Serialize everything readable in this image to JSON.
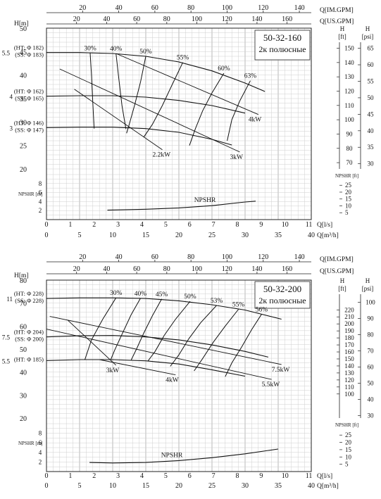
{
  "chart_data": [
    {
      "type": "line",
      "title": "50-32-160",
      "subtitle": "2к полюсные",
      "top_axes": [
        {
          "label": "Q[IM.GPM]",
          "ticks": [
            20,
            40,
            60,
            80,
            100,
            120,
            140
          ],
          "max": 146.6
        },
        {
          "label": "Q[US.GPM]",
          "ticks": [
            20,
            40,
            60,
            80,
            100,
            120,
            140,
            160
          ],
          "max": 176.1
        }
      ],
      "x_axes": [
        {
          "label": "Q[l/s]",
          "ticks": [
            0,
            1,
            2,
            3,
            4,
            5,
            6,
            7,
            8,
            9,
            10,
            11
          ],
          "max": 11.1
        },
        {
          "label": "Q[m³/h]",
          "ticks": [
            0,
            5,
            10,
            15,
            20,
            25,
            30,
            35,
            40
          ],
          "max": 40
        }
      ],
      "y_axis": {
        "label": "H[m]",
        "ticks": [
          20,
          25,
          30,
          35,
          40,
          45,
          50
        ],
        "ylim": [
          20,
          50
        ]
      },
      "right_axes": [
        {
          "label": "H [ft]",
          "ticks": [
            70,
            80,
            90,
            100,
            110,
            120,
            130,
            140,
            150
          ]
        },
        {
          "label": "H [psi]",
          "ticks": [
            30,
            35,
            40,
            45,
            50,
            55,
            60,
            65
          ]
        }
      ],
      "npsh_axis": {
        "label": "NPSHR [m]",
        "ticks": [
          2,
          4,
          6,
          8
        ],
        "ylim": [
          0,
          10
        ],
        "right_label": "NPSHR [ft]",
        "right_ticks": [
          5,
          10,
          15,
          20,
          25
        ]
      },
      "series": [
        {
          "name": "5.5 (HT: Φ 182) (SS: Φ 183)",
          "label_lines": [
            "(HT: Φ 182)",
            "(SS: Φ 183)"
          ],
          "label_num": "5.5",
          "x": [
            0,
            5,
            10,
            15,
            20,
            25,
            30,
            33
          ],
          "y": [
            44.8,
            44.8,
            44.6,
            44.0,
            42.8,
            40.9,
            38.3,
            36.5
          ]
        },
        {
          "name": "4 (HT: Φ 162) (SS: Φ 165)",
          "label_lines": [
            "(HT: Φ 162)",
            "(SS: Φ 165)"
          ],
          "label_num": "4",
          "x": [
            0,
            5,
            10,
            15,
            20,
            25,
            30
          ],
          "y": [
            35.5,
            35.6,
            35.6,
            35.3,
            34.6,
            33.5,
            31.9
          ]
        },
        {
          "name": "3 (HT: Φ 146) (SS: Φ 147)",
          "label_lines": [
            "(HT: Φ 146)",
            "(SS: Φ 147)"
          ],
          "label_num": "3",
          "x": [
            0,
            5,
            10,
            15,
            20,
            25,
            28
          ],
          "y": [
            28.8,
            28.9,
            28.9,
            28.6,
            27.8,
            26.3,
            25.1
          ]
        }
      ],
      "efficiency": [
        {
          "label": "30%",
          "x": [
            6.6,
            6.8,
            7.0,
            7.2
          ],
          "y": [
            44.7,
            40.0,
            34.0,
            28.6
          ]
        },
        {
          "label": "40%",
          "x": [
            10.5,
            10.9,
            11.4,
            12.0
          ],
          "y": [
            44.6,
            39.5,
            33.5,
            28.5
          ]
        },
        {
          "label": "50%",
          "x": [
            15.0,
            14.2,
            13.3,
            12.5,
            12.1
          ],
          "y": [
            44.0,
            38.5,
            33.5,
            29.5,
            27.6
          ]
        },
        {
          "label": "55%",
          "x": [
            20.6,
            19.0,
            17.5,
            16.0,
            14.7
          ],
          "y": [
            42.7,
            38.0,
            33.5,
            29.5,
            26.8
          ]
        },
        {
          "label": "60%",
          "x": [
            26.8,
            25.0,
            23.6,
            22.5,
            21.6
          ],
          "y": [
            40.4,
            36.2,
            32.4,
            28.6,
            25.0
          ]
        },
        {
          "label": "63%",
          "x": [
            30.8,
            29.2,
            28.0,
            27.3
          ],
          "y": [
            38.8,
            34.5,
            30.5,
            26.0
          ]
        }
      ],
      "power_lines": [
        {
          "label": "4kW",
          "x": [
            10.5,
            32.0
          ],
          "y": [
            44.6,
            31.6
          ]
        },
        {
          "label": "3kW",
          "x": [
            2.0,
            29.2
          ],
          "y": [
            41.3,
            23.6
          ]
        },
        {
          "label": "2.2kW",
          "x": [
            4.2,
            17.5
          ],
          "y": [
            37.0,
            24.1
          ]
        }
      ],
      "npsh": {
        "label": "NPSHR",
        "x": [
          9.2,
          15,
          20,
          25,
          30,
          31.6
        ],
        "y": [
          2.1,
          2.3,
          2.6,
          3.1,
          3.9,
          4.1
        ]
      }
    },
    {
      "type": "line",
      "title": "50-32-200",
      "subtitle": "2к полюсные",
      "top_axes": [
        {
          "label": "Q[IM.GPM]",
          "ticks": [
            20,
            40,
            60,
            80,
            100,
            120,
            140
          ],
          "max": 146.6
        },
        {
          "label": "Q[US.GPM]",
          "ticks": [
            20,
            40,
            60,
            80,
            100,
            120,
            140,
            160
          ],
          "max": 176.1
        }
      ],
      "x_axes": [
        {
          "label": "Q[l/s]",
          "ticks": [
            0,
            1,
            2,
            3,
            4,
            5,
            6,
            7,
            8,
            9,
            10,
            11
          ],
          "max": 11.1
        },
        {
          "label": "Q[m³/h]",
          "ticks": [
            0,
            5,
            10,
            15,
            20,
            25,
            30,
            35,
            40
          ],
          "max": 40
        }
      ],
      "y_axis": {
        "label": "H[m]",
        "ticks": [
          20,
          30,
          40,
          50,
          60,
          70,
          80
        ],
        "ylim": [
          20,
          80
        ]
      },
      "right_axes": [
        {
          "label": "H [ft]",
          "ticks": [
            100,
            110,
            120,
            130,
            140,
            150,
            160,
            170,
            180,
            190,
            200,
            210,
            220
          ]
        },
        {
          "label": "H [psi]",
          "ticks": [
            30,
            40,
            50,
            60,
            70,
            80,
            90,
            100
          ]
        }
      ],
      "npsh_axis": {
        "label": "NPSHR [m]",
        "ticks": [
          2,
          4,
          6,
          8
        ],
        "ylim": [
          0,
          10
        ],
        "right_label": "NPSHR [ft]",
        "right_ticks": [
          5,
          10,
          15,
          20,
          25
        ]
      },
      "series": [
        {
          "name": "11 (HT: Φ 228) (SS: Φ 228)",
          "label_lines": [
            "(HT: Φ 228)",
            "(SS: Φ 228)"
          ],
          "label_num": "11",
          "x": [
            0,
            5,
            10,
            15,
            20,
            25,
            30,
            35.5
          ],
          "y": [
            72.0,
            72.3,
            72.3,
            72.0,
            71.0,
            69.3,
            67.0,
            63.0
          ]
        },
        {
          "name": "7.5 (HT: Φ 204) (SS: Φ 200)",
          "label_lines": [
            "(HT: Φ 204)",
            "(SS: Φ 200)"
          ],
          "label_num": "7.5",
          "x": [
            0,
            5,
            10,
            15,
            20,
            25,
            30,
            33.5
          ],
          "y": [
            55.3,
            55.8,
            55.9,
            55.3,
            54.0,
            51.8,
            49.0,
            46.5
          ]
        },
        {
          "name": "5.5 (HT: Φ 185)",
          "label_lines": [
            "(HT: Φ 185)"
          ],
          "label_num": "5.5",
          "x": [
            0,
            5,
            10,
            15,
            20,
            25,
            30
          ],
          "y": [
            45.0,
            45.4,
            45.4,
            44.9,
            43.5,
            41.0,
            38.2
          ]
        }
      ],
      "efficiency": [
        {
          "label": "30%",
          "x": [
            10.5,
            8.5,
            6.8,
            5.8
          ],
          "y": [
            72.3,
            63.0,
            54.0,
            45.4
          ]
        },
        {
          "label": "40%",
          "x": [
            14.2,
            12.8,
            11.5,
            10.3,
            9.7
          ],
          "y": [
            72.1,
            65.0,
            57.0,
            49.5,
            45.4
          ]
        },
        {
          "label": "45%",
          "x": [
            17.4,
            16.0,
            14.7,
            13.6,
            12.8
          ],
          "y": [
            71.8,
            64.5,
            57.0,
            50.0,
            45.3
          ]
        },
        {
          "label": "50%",
          "x": [
            21.7,
            19.5,
            17.8,
            16.4,
            15.3
          ],
          "y": [
            70.8,
            63.0,
            56.0,
            49.0,
            44.7
          ]
        },
        {
          "label": "53%",
          "x": [
            25.7,
            23.3,
            21.5,
            20.0,
            18.7
          ],
          "y": [
            69.0,
            61.5,
            54.5,
            47.5,
            42.5
          ]
        },
        {
          "label": "55%",
          "x": [
            29.0,
            27.0,
            25.2,
            23.5,
            22.3
          ],
          "y": [
            67.3,
            60.0,
            53.0,
            45.5,
            40.5
          ]
        },
        {
          "label": "56%",
          "x": [
            32.5,
            31.0,
            29.5,
            28.0,
            27.0
          ],
          "y": [
            65.2,
            58.5,
            51.0,
            44.0,
            38.0
          ]
        }
      ],
      "power_lines": [
        {
          "label": "7.5kW",
          "x": [
            0.5,
            35.5
          ],
          "y": [
            64.2,
            43.3
          ]
        },
        {
          "label": "5.5kW",
          "x": [
            0.0,
            34.0
          ],
          "y": [
            58.7,
            36.8
          ]
        },
        {
          "label": "4kW",
          "x": [
            8.0,
            19.5
          ],
          "y": [
            45.4,
            38.8
          ]
        },
        {
          "label": "3kW",
          "x": [
            3.2,
            10.5
          ],
          "y": [
            62.6,
            43.0
          ]
        }
      ],
      "npsh": {
        "label": "NPSHR",
        "x": [
          6.5,
          10,
          15,
          20,
          25,
          30,
          35
        ],
        "y": [
          1.9,
          1.8,
          1.9,
          2.3,
          2.9,
          3.7,
          4.7
        ]
      }
    }
  ]
}
